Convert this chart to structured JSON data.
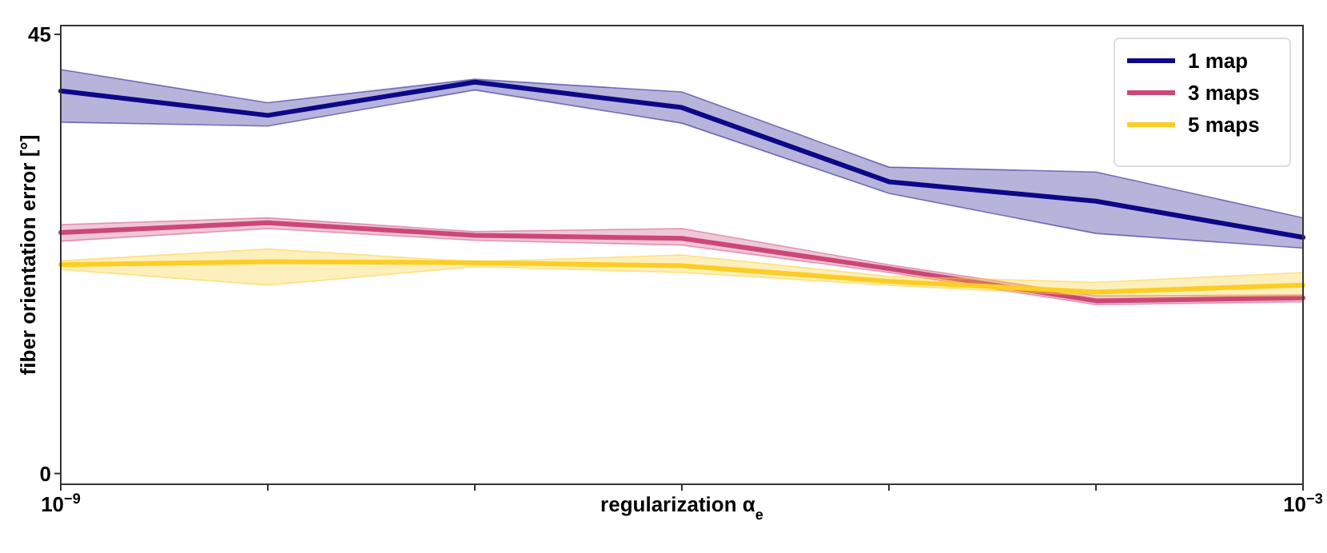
{
  "chart_data": {
    "type": "line",
    "xlabel": "regularization α$_{e}$",
    "ylabel": "fiber orientation error [°]",
    "log": "x",
    "xlim": [
      1e-09,
      0.001
    ],
    "xticks": [
      {
        "value": 1e-09,
        "label": "10$^{−9}$"
      },
      {
        "value": 1e-08,
        "label": null
      },
      {
        "value": 1e-07,
        "label": null
      },
      {
        "value": 1e-06,
        "label": null
      },
      {
        "value": 1e-05,
        "label": null
      },
      {
        "value": 0.0001,
        "label": null
      },
      {
        "value": 0.001,
        "label": "10$^{−3}$"
      }
    ],
    "ylim": [
      -1.1,
      45.9
    ],
    "yticks": [
      0,
      45
    ],
    "grid": false,
    "legend": "top right",
    "marker": "none",
    "line_style": "solid",
    "x": [
      1e-09,
      1e-08,
      1e-07,
      1e-06,
      1e-05,
      0.0001,
      0.001
    ],
    "series": [
      {
        "name": "1 map",
        "color": "#0d0887",
        "values": [
          39.2,
          36.7,
          40.1,
          37.5,
          29.9,
          27.9,
          24.2
        ],
        "lower": [
          36.0,
          35.6,
          39.3,
          35.9,
          28.7,
          24.6,
          23.1
        ],
        "upper": [
          41.4,
          38.0,
          40.4,
          39.1,
          31.4,
          30.9,
          26.2
        ]
      },
      {
        "name": "3 maps",
        "color": "#cc4778",
        "values": [
          24.7,
          25.7,
          24.4,
          24.1,
          21.0,
          17.7,
          18.0
        ],
        "lower": [
          23.8,
          25.1,
          23.9,
          23.4,
          20.6,
          17.3,
          17.6
        ],
        "upper": [
          25.5,
          26.2,
          24.8,
          25.1,
          21.4,
          18.2,
          18.3
        ]
      },
      {
        "name": "5 maps",
        "color": "#fccd25",
        "values": [
          21.4,
          21.7,
          21.6,
          21.3,
          19.7,
          18.6,
          19.3
        ],
        "lower": [
          20.9,
          19.3,
          21.2,
          20.6,
          19.3,
          18.2,
          18.2
        ],
        "upper": [
          21.8,
          23.0,
          21.7,
          22.4,
          20.2,
          19.6,
          20.6
        ]
      }
    ]
  }
}
